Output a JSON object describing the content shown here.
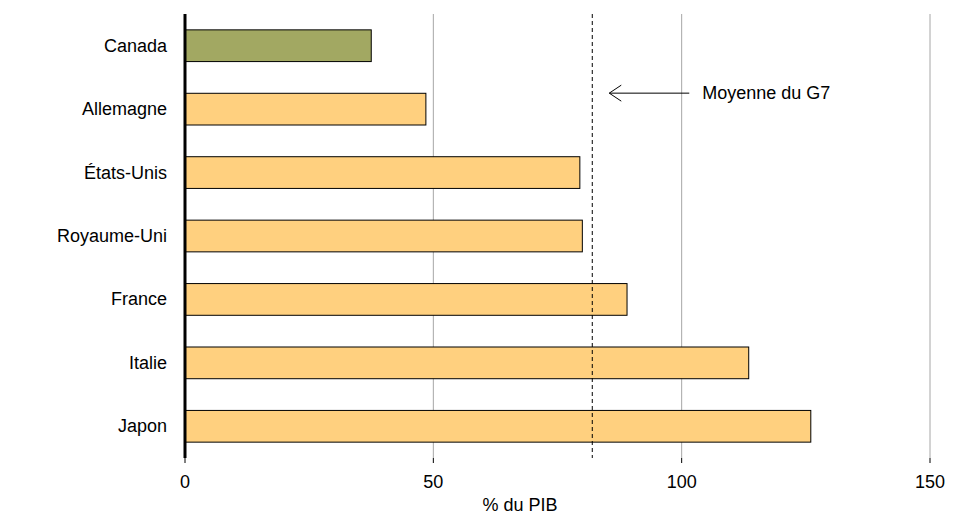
{
  "chart_data": {
    "type": "bar",
    "orientation": "horizontal",
    "categories": [
      "Canada",
      "Allemagne",
      "États-Unis",
      "Royaume-Uni",
      "France",
      "Italie",
      "Japon"
    ],
    "values": [
      37.5,
      48.5,
      79.5,
      80,
      89,
      113.5,
      126
    ],
    "colors": [
      "#a2a862",
      "#ffd07f",
      "#ffd07f",
      "#ffd07f",
      "#ffd07f",
      "#ffd07f",
      "#ffd07f"
    ],
    "x_label": "% du PIB",
    "xlim": [
      0,
      150
    ],
    "xticks": [
      0,
      50,
      100,
      150
    ],
    "grid": true,
    "average": {
      "value": 82,
      "label": "Moyenne du G7"
    }
  }
}
